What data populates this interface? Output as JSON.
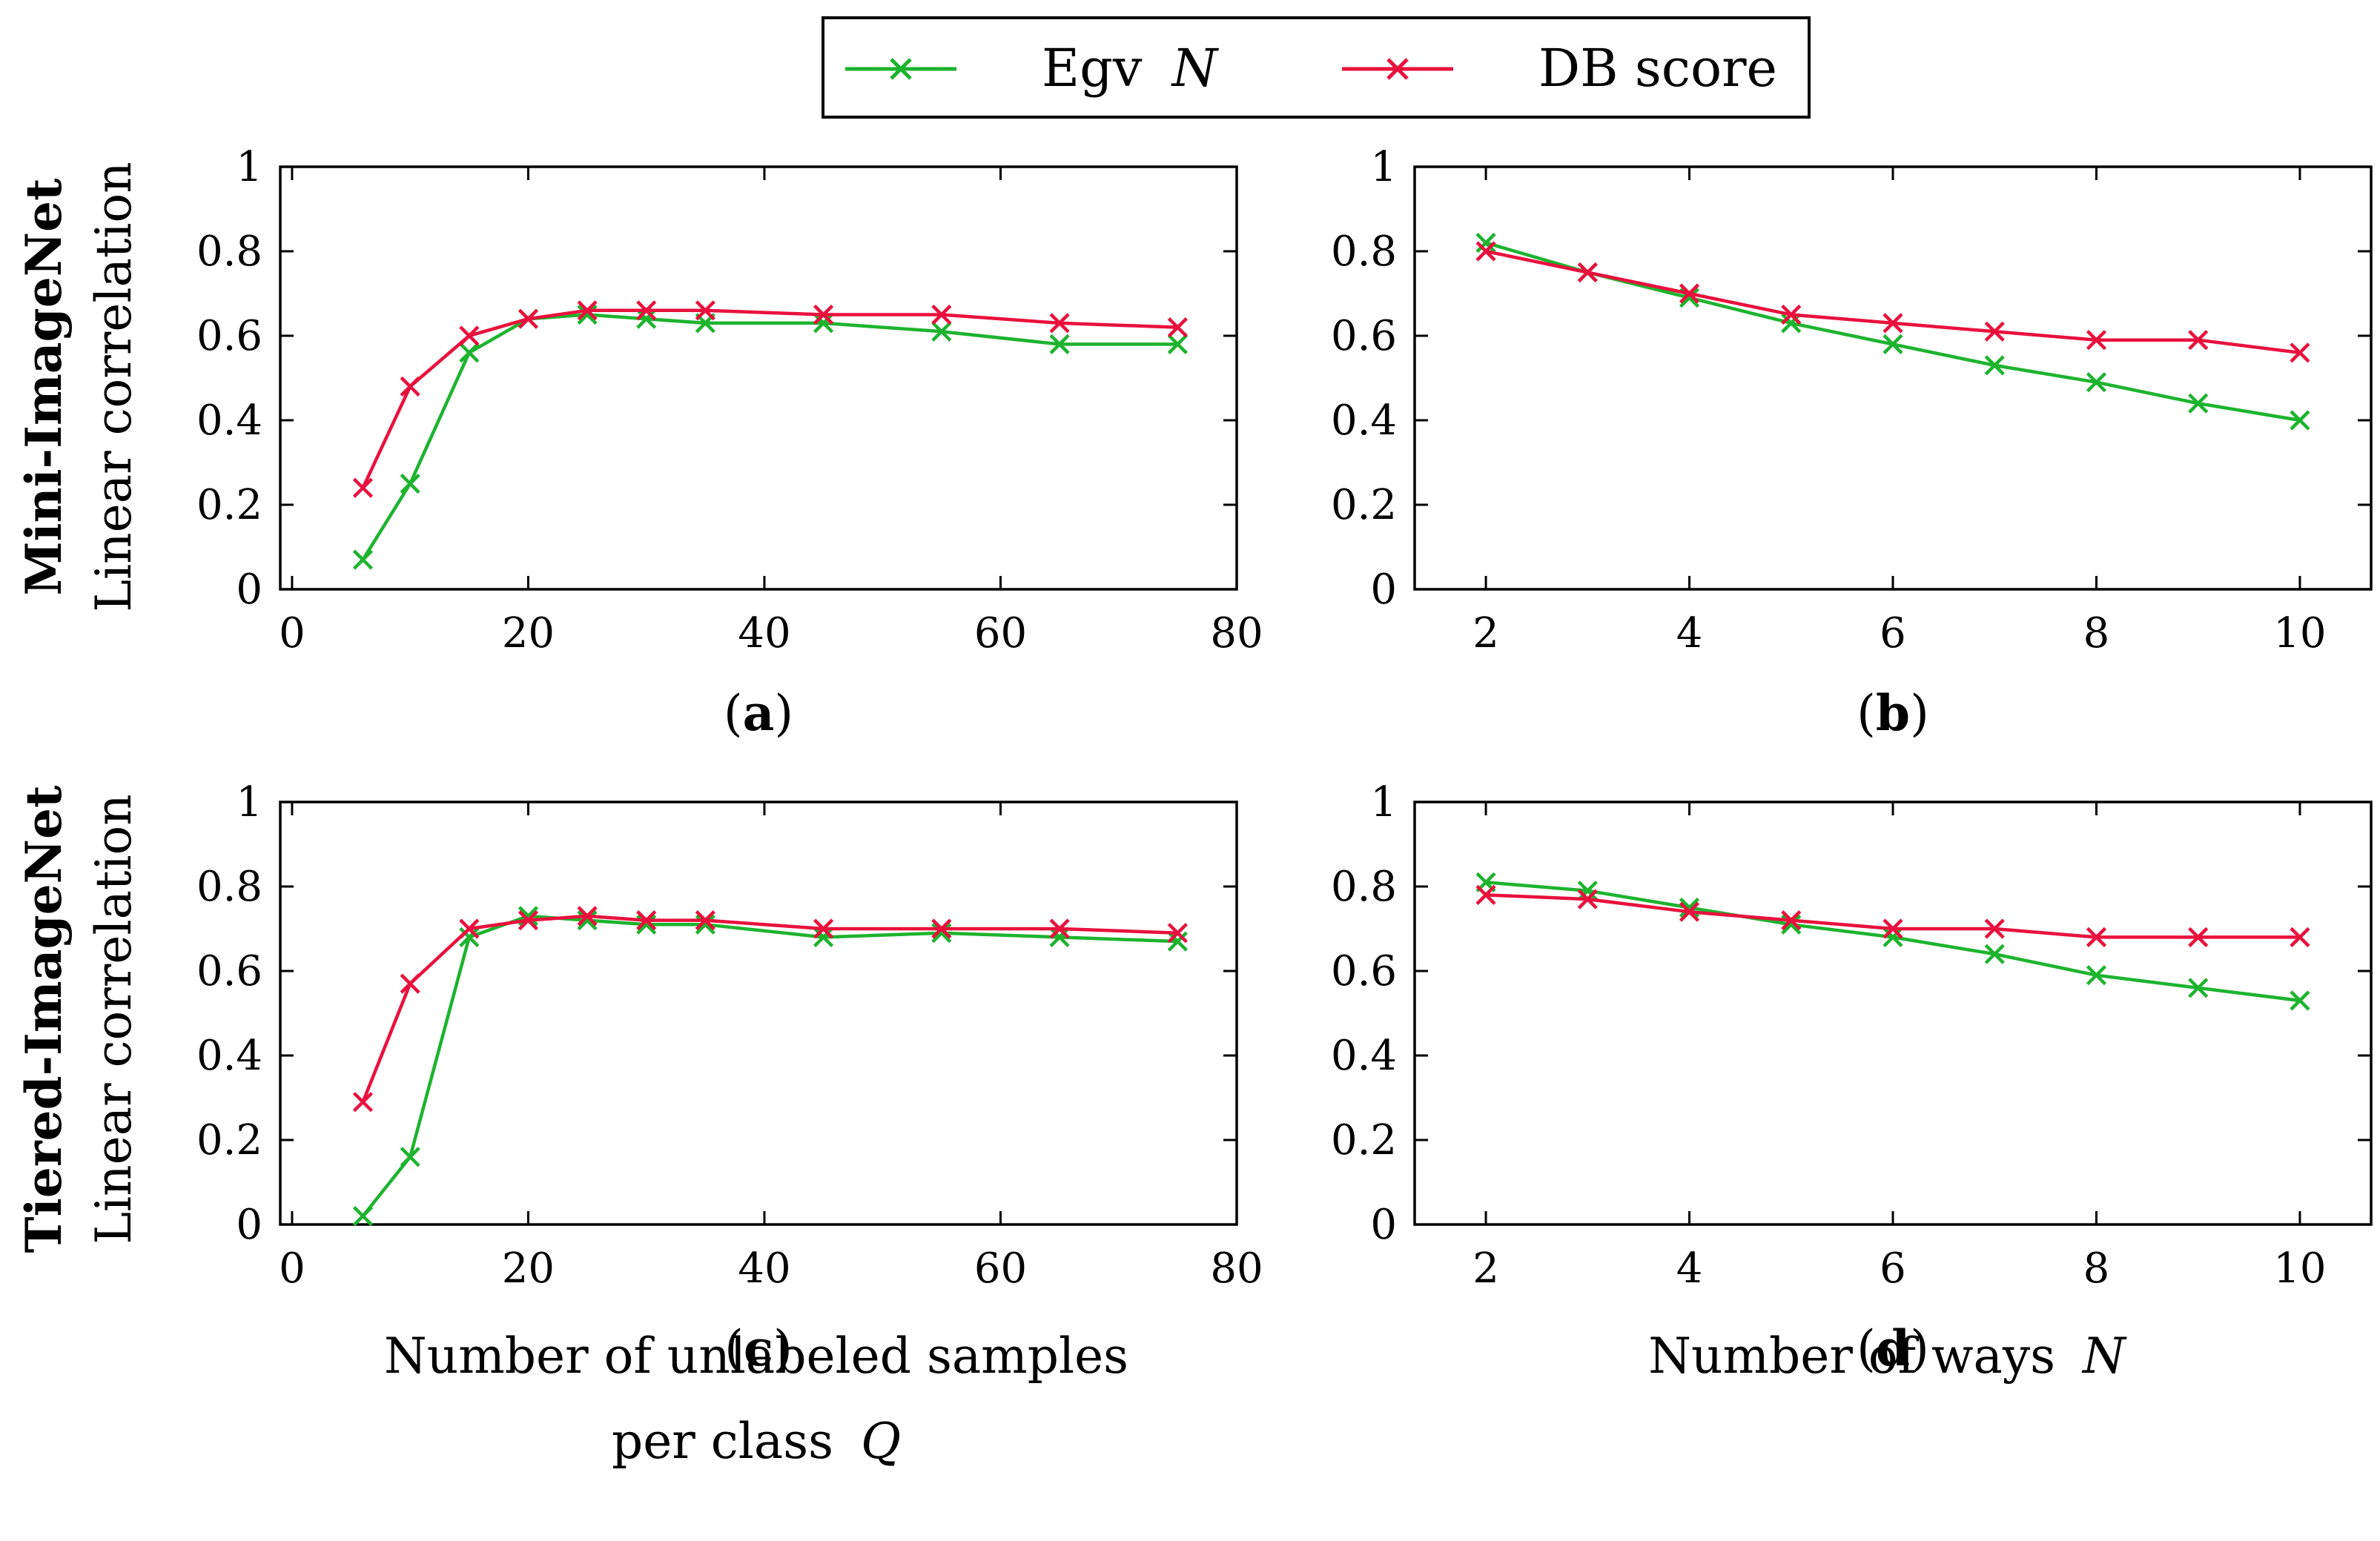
{
  "legend": {
    "entries": [
      {
        "key": "egv",
        "label": "Egv",
        "label_italic": "N",
        "color": "#1db32e"
      },
      {
        "key": "db",
        "label": "DB score",
        "label_italic": "",
        "color": "#e8113d"
      }
    ]
  },
  "row_labels": [
    {
      "dataset": "Mini-ImageNet",
      "ylabel": "Linear correlation"
    },
    {
      "dataset": "Tiered-ImageNet",
      "ylabel": "Linear correlation"
    }
  ],
  "bottom_axis_titles": {
    "left_line1": "Number of unlabeled samples",
    "left_line2": "per class",
    "left_line2_italic": "Q",
    "right": "Number of ways",
    "right_italic": "N"
  },
  "chart_data": [
    {
      "id": "a",
      "panel_label": "a",
      "type": "line",
      "xlim": [
        -1,
        80
      ],
      "ylim": [
        0,
        1
      ],
      "xticks": [
        0,
        20,
        40,
        60,
        80
      ],
      "yticks": [
        0,
        0.2,
        0.4,
        0.6,
        0.8,
        1
      ],
      "x": [
        6,
        10,
        15,
        20,
        25,
        30,
        35,
        45,
        55,
        65,
        75
      ],
      "series": [
        {
          "name": "Egv N",
          "values": [
            0.07,
            0.25,
            0.56,
            0.64,
            0.65,
            0.64,
            0.63,
            0.63,
            0.61,
            0.58,
            0.58
          ]
        },
        {
          "name": "DB score",
          "values": [
            0.24,
            0.48,
            0.6,
            0.64,
            0.66,
            0.66,
            0.66,
            0.65,
            0.65,
            0.63,
            0.62
          ]
        }
      ]
    },
    {
      "id": "b",
      "panel_label": "b",
      "type": "line",
      "xlim": [
        1.3,
        10.7
      ],
      "ylim": [
        0,
        1
      ],
      "xticks": [
        2,
        4,
        6,
        8,
        10
      ],
      "yticks": [
        0,
        0.2,
        0.4,
        0.6,
        0.8,
        1
      ],
      "x": [
        2,
        3,
        4,
        5,
        6,
        7,
        8,
        9,
        10
      ],
      "series": [
        {
          "name": "Egv N",
          "values": [
            0.82,
            0.75,
            0.69,
            0.63,
            0.58,
            0.53,
            0.49,
            0.44,
            0.4
          ]
        },
        {
          "name": "DB score",
          "values": [
            0.8,
            0.75,
            0.7,
            0.65,
            0.63,
            0.61,
            0.59,
            0.59,
            0.56
          ]
        }
      ]
    },
    {
      "id": "c",
      "panel_label": "c",
      "type": "line",
      "xlim": [
        -1,
        80
      ],
      "ylim": [
        0,
        1
      ],
      "xticks": [
        0,
        20,
        40,
        60,
        80
      ],
      "yticks": [
        0,
        0.2,
        0.4,
        0.6,
        0.8,
        1
      ],
      "x": [
        6,
        10,
        15,
        20,
        25,
        30,
        35,
        45,
        55,
        65,
        75
      ],
      "series": [
        {
          "name": "Egv N",
          "values": [
            0.02,
            0.16,
            0.68,
            0.73,
            0.72,
            0.71,
            0.71,
            0.68,
            0.69,
            0.68,
            0.67
          ]
        },
        {
          "name": "DB score",
          "values": [
            0.29,
            0.57,
            0.7,
            0.72,
            0.73,
            0.72,
            0.72,
            0.7,
            0.7,
            0.7,
            0.69
          ]
        }
      ]
    },
    {
      "id": "d",
      "panel_label": "d",
      "type": "line",
      "xlim": [
        1.3,
        10.7
      ],
      "ylim": [
        0,
        1
      ],
      "xticks": [
        2,
        4,
        6,
        8,
        10
      ],
      "yticks": [
        0,
        0.2,
        0.4,
        0.6,
        0.8,
        1
      ],
      "x": [
        2,
        3,
        4,
        5,
        6,
        7,
        8,
        9,
        10
      ],
      "series": [
        {
          "name": "Egv N",
          "values": [
            0.81,
            0.79,
            0.75,
            0.71,
            0.68,
            0.64,
            0.59,
            0.56,
            0.53
          ]
        },
        {
          "name": "DB score",
          "values": [
            0.78,
            0.77,
            0.74,
            0.72,
            0.7,
            0.7,
            0.68,
            0.68,
            0.68
          ]
        }
      ]
    }
  ]
}
